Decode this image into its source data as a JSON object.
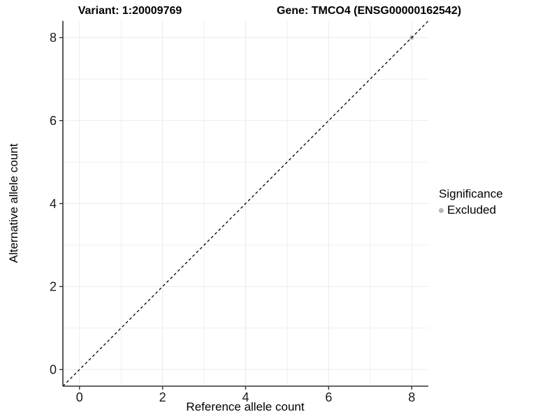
{
  "header": {
    "variant_title": "Variant: 1:20009769",
    "gene_title": "Gene: TMCO4 (ENSG00000162542)"
  },
  "legend": {
    "title": "Significance",
    "items": [
      {
        "label": "Excluded",
        "color": "#b5b5b5"
      }
    ]
  },
  "chart_data": {
    "type": "scatter",
    "title": "Variant: 1:20009769    Gene: TMCO4 (ENSG00000162542)",
    "xlabel": "Reference allele count",
    "ylabel": "Alternative allele count",
    "xlim": [
      -0.4,
      8.4
    ],
    "ylim": [
      -0.4,
      8.4
    ],
    "x_ticks": [
      0,
      2,
      4,
      6,
      8
    ],
    "y_ticks": [
      0,
      2,
      4,
      6,
      8
    ],
    "x_minor_ticks": [
      1,
      3,
      5,
      7
    ],
    "y_minor_ticks": [
      1,
      3,
      5,
      7
    ],
    "grid": true,
    "legend_position": "right",
    "series": [
      {
        "name": "Excluded",
        "points": [
          {
            "x": 8,
            "y": 8
          }
        ],
        "color": "#b5b5b5"
      }
    ],
    "reference_line": {
      "type": "identity",
      "slope": 1,
      "intercept": 0,
      "style": "dashed",
      "color": "#000000"
    },
    "colors": {
      "axis": "#333333",
      "grid": "#ebebeb",
      "grid_minor": "#f0f0f0",
      "tick_text": "#1a1a1a",
      "background": "#ffffff"
    }
  }
}
